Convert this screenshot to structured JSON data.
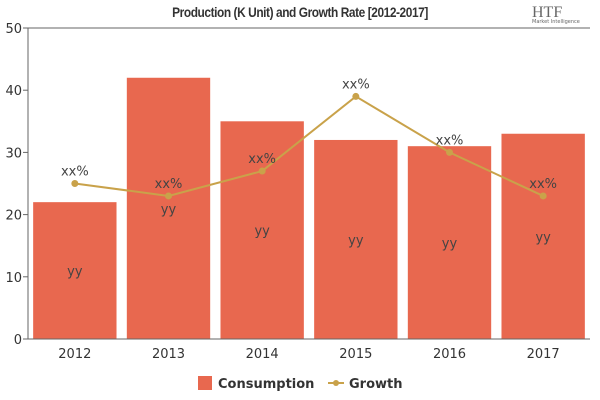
{
  "chart_data": {
    "type": "bar+line",
    "title": "Production (K Unit) and Growth Rate [2012-2017]",
    "categories": [
      "2012",
      "2013",
      "2014",
      "2015",
      "2016",
      "2017"
    ],
    "ylim": [
      0,
      50
    ],
    "yticks": [
      0,
      10,
      20,
      30,
      40,
      50
    ],
    "series": [
      {
        "name": "Consumption",
        "type": "bar",
        "color": "#e8684f",
        "values": [
          22,
          42,
          35,
          32,
          31,
          33
        ],
        "labels": [
          "yy",
          "yy",
          "yy",
          "yy",
          "yy",
          "yy"
        ]
      },
      {
        "name": "Growth",
        "type": "line",
        "color": "#c9a24a",
        "values": [
          25,
          23,
          27,
          39,
          30,
          23
        ],
        "labels": [
          "xx%",
          "xx%",
          "xx%",
          "xx%",
          "xx%",
          "xx%"
        ]
      }
    ],
    "legend": "bottom",
    "grid": false
  },
  "logo": {
    "text": "HTF",
    "subtext": "Market Intelligence"
  }
}
